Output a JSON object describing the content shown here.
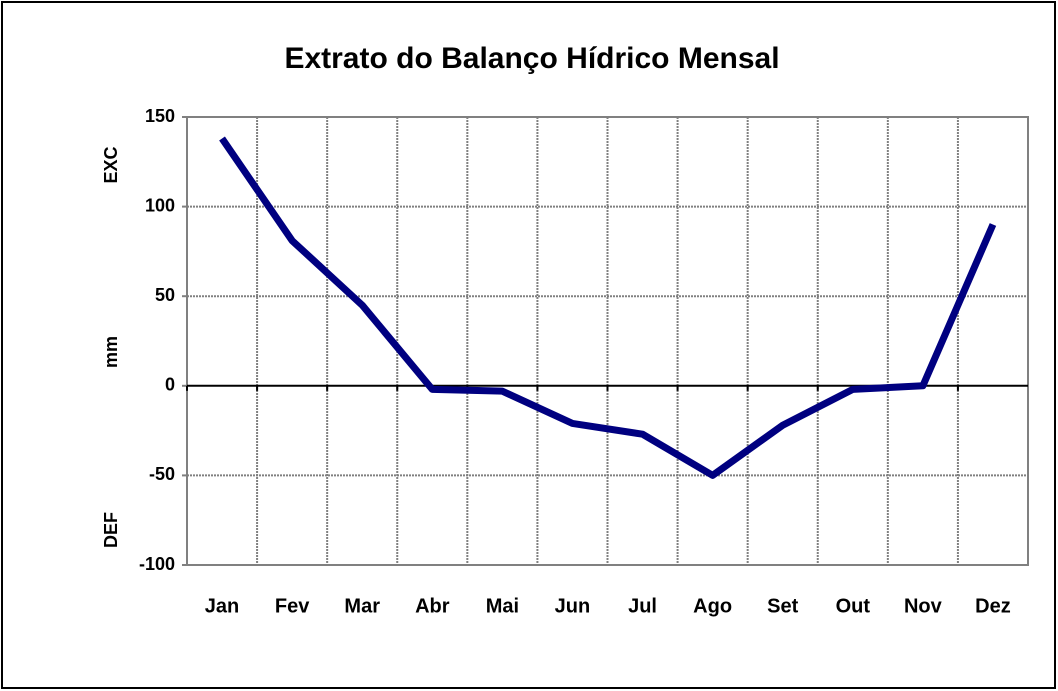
{
  "chart_data": {
    "type": "line",
    "title": "Extrato do Balanço Hídrico Mensal",
    "y_annotations": [
      "EXC",
      "mm",
      "DEF"
    ],
    "categories": [
      "Jan",
      "Fev",
      "Mar",
      "Abr",
      "Mai",
      "Jun",
      "Jul",
      "Ago",
      "Set",
      "Out",
      "Nov",
      "Dez"
    ],
    "series": [
      {
        "color": "#000080",
        "values": [
          138,
          81,
          45,
          -2,
          -3,
          -21,
          -27,
          -50,
          -22,
          -2,
          0,
          90
        ]
      }
    ],
    "ylim": [
      -100,
      150
    ],
    "yticks": [
      -100,
      -50,
      0,
      50,
      100,
      150
    ],
    "grid": true
  }
}
